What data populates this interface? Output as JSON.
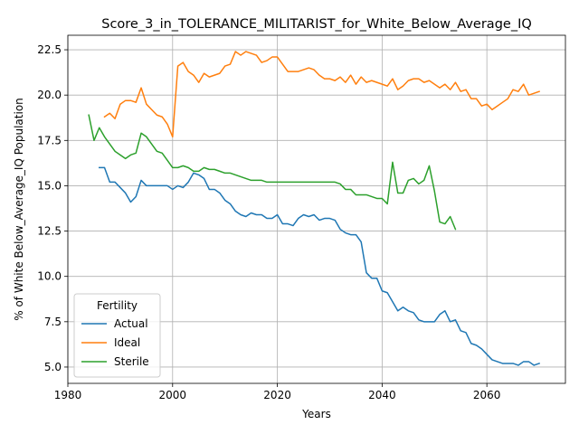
{
  "chart_data": {
    "type": "line",
    "title": "Score_3_in_TOLERANCE_MILITARIST_for_White_Below_Average_IQ",
    "xlabel": "Years",
    "ylabel": "% of White Below_Average_IQ Population",
    "xlim": [
      1980,
      2075
    ],
    "ylim": [
      4.1,
      23.3
    ],
    "xticks": [
      1980,
      2000,
      2020,
      2040,
      2060
    ],
    "yticks": [
      5.0,
      7.5,
      10.0,
      12.5,
      15.0,
      17.5,
      20.0,
      22.5
    ],
    "xtick_labels": [
      "1980",
      "2000",
      "2020",
      "2040",
      "2060"
    ],
    "ytick_labels": [
      "5.0",
      "7.5",
      "10.0",
      "12.5",
      "15.0",
      "17.5",
      "20.0",
      "22.5"
    ],
    "grid": true,
    "legend": {
      "title": "Fertility",
      "position": "lower-left"
    },
    "series": [
      {
        "name": "Actual",
        "color": "#1f77b4",
        "x": [
          1986,
          1987,
          1988,
          1989,
          1990,
          1991,
          1992,
          1993,
          1994,
          1995,
          1996,
          1997,
          1998,
          1999,
          2000,
          2001,
          2002,
          2003,
          2004,
          2005,
          2006,
          2007,
          2008,
          2009,
          2010,
          2011,
          2012,
          2013,
          2014,
          2015,
          2016,
          2017,
          2018,
          2019,
          2020,
          2021,
          2022,
          2023,
          2024,
          2025,
          2026,
          2027,
          2028,
          2029,
          2030,
          2031,
          2032,
          2033,
          2034,
          2035,
          2036,
          2037,
          2038,
          2039,
          2040,
          2041,
          2042,
          2043,
          2044,
          2045,
          2046,
          2047,
          2048,
          2049,
          2050,
          2051,
          2052,
          2053,
          2054,
          2055,
          2056,
          2057,
          2058,
          2059,
          2060,
          2061,
          2062,
          2063,
          2064,
          2065,
          2066,
          2067,
          2068,
          2069,
          2070
        ],
        "values": [
          16.0,
          16.0,
          15.2,
          15.2,
          14.9,
          14.6,
          14.1,
          14.4,
          15.3,
          15.0,
          15.0,
          15.0,
          15.0,
          15.0,
          14.8,
          15.0,
          14.9,
          15.2,
          15.7,
          15.6,
          15.4,
          14.8,
          14.8,
          14.6,
          14.2,
          14.0,
          13.6,
          13.4,
          13.3,
          13.5,
          13.4,
          13.4,
          13.2,
          13.2,
          13.4,
          12.9,
          12.9,
          12.8,
          13.2,
          13.4,
          13.3,
          13.4,
          13.1,
          13.2,
          13.2,
          13.1,
          12.6,
          12.4,
          12.3,
          12.3,
          11.9,
          10.2,
          9.9,
          9.9,
          9.2,
          9.1,
          8.6,
          8.1,
          8.3,
          8.1,
          8.0,
          7.6,
          7.5,
          7.5,
          7.5,
          7.9,
          8.1,
          7.5,
          7.6,
          7.0,
          6.9,
          6.3,
          6.2,
          6.0,
          5.7,
          5.4,
          5.3,
          5.2,
          5.2,
          5.2,
          5.1,
          5.3,
          5.3,
          5.1,
          5.2
        ]
      },
      {
        "name": "Ideal",
        "color": "#ff7f0e",
        "x": [
          1987,
          1988,
          1989,
          1990,
          1991,
          1992,
          1993,
          1994,
          1995,
          1996,
          1997,
          1998,
          1999,
          2000,
          2001,
          2002,
          2003,
          2004,
          2005,
          2006,
          2007,
          2008,
          2009,
          2010,
          2011,
          2012,
          2013,
          2014,
          2015,
          2016,
          2017,
          2018,
          2019,
          2020,
          2021,
          2022,
          2023,
          2024,
          2025,
          2026,
          2027,
          2028,
          2029,
          2030,
          2031,
          2032,
          2033,
          2034,
          2035,
          2036,
          2037,
          2038,
          2039,
          2040,
          2041,
          2042,
          2043,
          2044,
          2045,
          2046,
          2047,
          2048,
          2049,
          2050,
          2051,
          2052,
          2053,
          2054,
          2055,
          2056,
          2057,
          2058,
          2059,
          2060,
          2061,
          2062,
          2063,
          2064,
          2065,
          2066,
          2067,
          2068,
          2069,
          2070
        ],
        "values": [
          18.8,
          19.0,
          18.7,
          19.5,
          19.7,
          19.7,
          19.6,
          20.4,
          19.5,
          19.2,
          18.9,
          18.8,
          18.4,
          17.7,
          21.6,
          21.8,
          21.3,
          21.1,
          20.7,
          21.2,
          21.0,
          21.1,
          21.2,
          21.6,
          21.7,
          22.4,
          22.2,
          22.4,
          22.3,
          22.2,
          21.8,
          21.9,
          22.1,
          22.1,
          21.7,
          21.3,
          21.3,
          21.3,
          21.4,
          21.5,
          21.4,
          21.1,
          20.9,
          20.9,
          20.8,
          21.0,
          20.7,
          21.1,
          20.6,
          21.0,
          20.7,
          20.8,
          20.7,
          20.6,
          20.5,
          20.9,
          20.3,
          20.5,
          20.8,
          20.9,
          20.9,
          20.7,
          20.8,
          20.6,
          20.4,
          20.6,
          20.3,
          20.7,
          20.2,
          20.3,
          19.8,
          19.8,
          19.4,
          19.5,
          19.2,
          19.4,
          19.6,
          19.8,
          20.3,
          20.2,
          20.6,
          20.0,
          20.1,
          20.2
        ]
      },
      {
        "name": "Sterile",
        "color": "#2ca02c",
        "x": [
          1984,
          1985,
          1986,
          1987,
          1988,
          1989,
          1990,
          1991,
          1992,
          1993,
          1994,
          1995,
          1996,
          1997,
          1998,
          1999,
          2000,
          2001,
          2002,
          2003,
          2004,
          2005,
          2006,
          2007,
          2008,
          2009,
          2010,
          2011,
          2012,
          2013,
          2014,
          2015,
          2016,
          2017,
          2018,
          2019,
          2020,
          2021,
          2022,
          2023,
          2024,
          2025,
          2026,
          2027,
          2028,
          2029,
          2030,
          2031,
          2032,
          2033,
          2034,
          2035,
          2036,
          2037,
          2038,
          2039,
          2040,
          2041,
          2042,
          2043,
          2044,
          2045,
          2046,
          2047,
          2048,
          2049,
          2050,
          2051,
          2052,
          2053,
          2054
        ],
        "values": [
          18.9,
          17.5,
          18.2,
          17.7,
          17.3,
          16.9,
          16.7,
          16.5,
          16.7,
          16.8,
          17.9,
          17.7,
          17.3,
          16.9,
          16.8,
          16.4,
          16.0,
          16.0,
          16.1,
          16.0,
          15.8,
          15.8,
          16.0,
          15.9,
          15.9,
          15.8,
          15.7,
          15.7,
          15.6,
          15.5,
          15.4,
          15.3,
          15.3,
          15.3,
          15.2,
          15.2,
          15.2,
          15.2,
          15.2,
          15.2,
          15.2,
          15.2,
          15.2,
          15.2,
          15.2,
          15.2,
          15.2,
          15.2,
          15.1,
          14.8,
          14.8,
          14.5,
          14.5,
          14.5,
          14.4,
          14.3,
          14.3,
          14.0,
          16.3,
          14.6,
          14.6,
          15.3,
          15.4,
          15.1,
          15.3,
          16.1,
          14.7,
          13.0,
          12.9,
          13.3,
          12.6
        ]
      }
    ]
  }
}
